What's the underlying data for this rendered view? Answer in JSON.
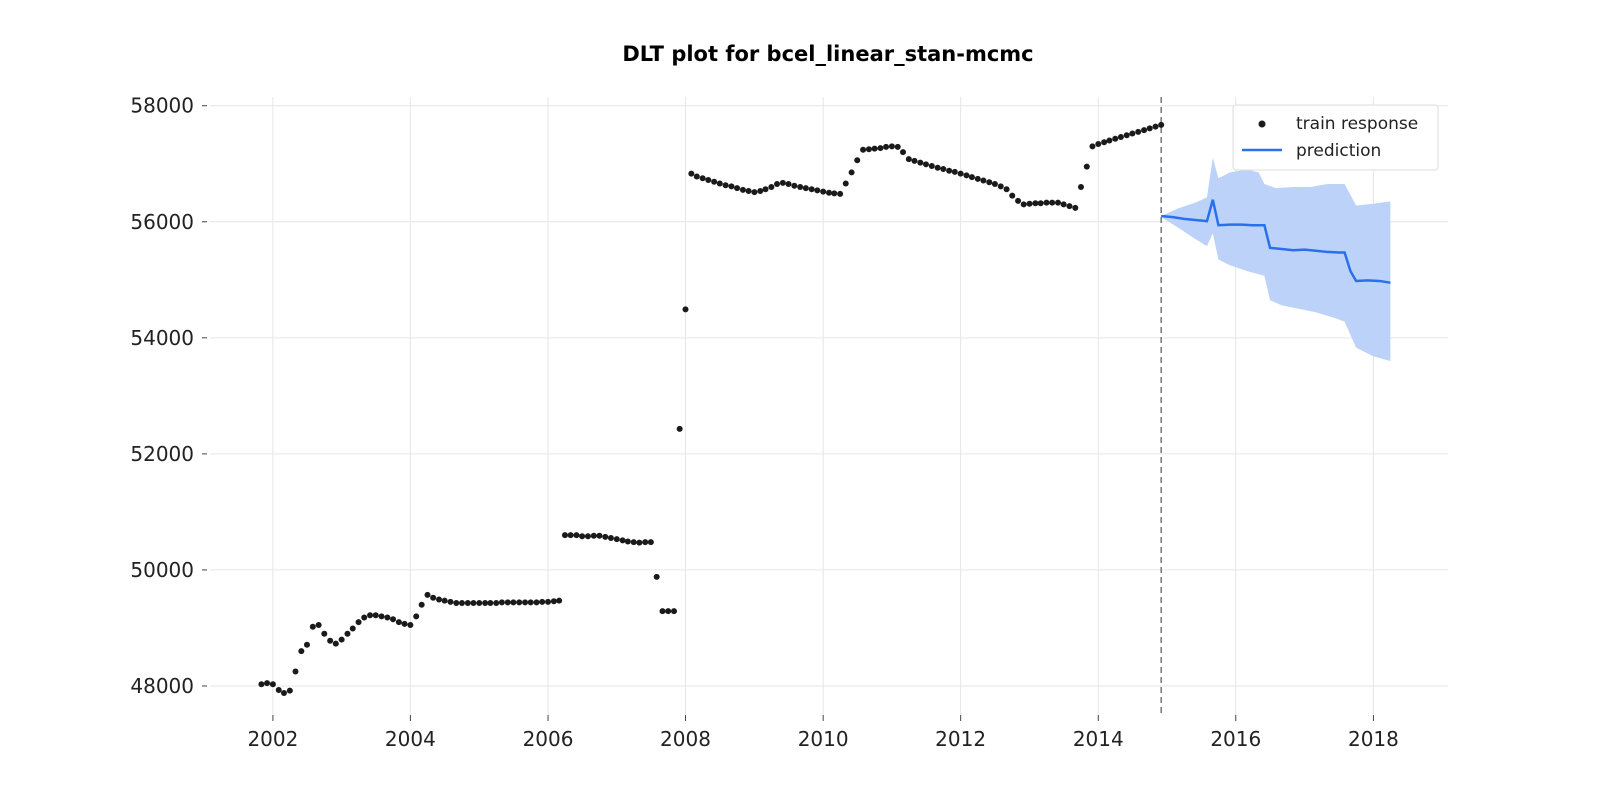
{
  "chart_data": {
    "type": "scatter",
    "title": "DLT plot for bcel_linear_stan-mcmc",
    "xlabel": "",
    "ylabel": "",
    "xlim": [
      "2001-02-01",
      "2019-02-01"
    ],
    "ylim": [
      47500,
      58150
    ],
    "x_ticks": [
      "2002",
      "2004",
      "2006",
      "2008",
      "2010",
      "2012",
      "2014",
      "2016",
      "2018"
    ],
    "y_ticks": [
      "48000",
      "50000",
      "52000",
      "54000",
      "56000",
      "58000"
    ],
    "grid": true,
    "legend_position": "top-right",
    "train_end_marker": "2014-12-01",
    "colors": {
      "train": "#1a1a1a",
      "prediction": "#2970ea",
      "band": "#bcd2f9",
      "divider": "#777777"
    },
    "series": [
      {
        "name": "train response",
        "kind": "scatter",
        "points": [
          [
            "2001-11-01",
            48030
          ],
          [
            "2001-12-01",
            48050
          ],
          [
            "2002-01-01",
            48030
          ],
          [
            "2002-02-01",
            47930
          ],
          [
            "2002-03-01",
            47880
          ],
          [
            "2002-04-01",
            47920
          ],
          [
            "2002-05-01",
            48250
          ],
          [
            "2002-06-01",
            48600
          ],
          [
            "2002-07-01",
            48710
          ],
          [
            "2002-08-01",
            49020
          ],
          [
            "2002-09-01",
            49050
          ],
          [
            "2002-10-01",
            48900
          ],
          [
            "2002-11-01",
            48780
          ],
          [
            "2002-12-01",
            48730
          ],
          [
            "2003-01-01",
            48800
          ],
          [
            "2003-02-01",
            48900
          ],
          [
            "2003-03-01",
            48990
          ],
          [
            "2003-04-01",
            49100
          ],
          [
            "2003-05-01",
            49180
          ],
          [
            "2003-06-01",
            49220
          ],
          [
            "2003-07-01",
            49220
          ],
          [
            "2003-08-01",
            49200
          ],
          [
            "2003-09-01",
            49180
          ],
          [
            "2003-10-01",
            49150
          ],
          [
            "2003-11-01",
            49100
          ],
          [
            "2003-12-01",
            49070
          ],
          [
            "2004-01-01",
            49050
          ],
          [
            "2004-02-01",
            49200
          ],
          [
            "2004-03-01",
            49400
          ],
          [
            "2004-04-01",
            49570
          ],
          [
            "2004-05-01",
            49520
          ],
          [
            "2004-06-01",
            49490
          ],
          [
            "2004-07-01",
            49470
          ],
          [
            "2004-08-01",
            49450
          ],
          [
            "2004-09-01",
            49430
          ],
          [
            "2004-10-01",
            49430
          ],
          [
            "2004-11-01",
            49430
          ],
          [
            "2004-12-01",
            49430
          ],
          [
            "2005-01-01",
            49430
          ],
          [
            "2005-02-01",
            49430
          ],
          [
            "2005-03-01",
            49430
          ],
          [
            "2005-04-01",
            49430
          ],
          [
            "2005-05-01",
            49440
          ],
          [
            "2005-06-01",
            49440
          ],
          [
            "2005-07-01",
            49440
          ],
          [
            "2005-08-01",
            49440
          ],
          [
            "2005-09-01",
            49440
          ],
          [
            "2005-10-01",
            49440
          ],
          [
            "2005-11-01",
            49440
          ],
          [
            "2005-12-01",
            49450
          ],
          [
            "2006-01-01",
            49450
          ],
          [
            "2006-02-01",
            49460
          ],
          [
            "2006-03-01",
            49470
          ],
          [
            "2006-04-01",
            50600
          ],
          [
            "2006-05-01",
            50600
          ],
          [
            "2006-06-01",
            50600
          ],
          [
            "2006-07-01",
            50580
          ],
          [
            "2006-08-01",
            50580
          ],
          [
            "2006-09-01",
            50590
          ],
          [
            "2006-10-01",
            50590
          ],
          [
            "2006-11-01",
            50570
          ],
          [
            "2006-12-01",
            50550
          ],
          [
            "2007-01-01",
            50530
          ],
          [
            "2007-02-01",
            50510
          ],
          [
            "2007-03-01",
            50490
          ],
          [
            "2007-04-01",
            50480
          ],
          [
            "2007-05-01",
            50470
          ],
          [
            "2007-06-01",
            50480
          ],
          [
            "2007-07-01",
            50480
          ],
          [
            "2007-08-01",
            49880
          ],
          [
            "2007-09-01",
            49290
          ],
          [
            "2007-10-01",
            49290
          ],
          [
            "2007-11-01",
            49290
          ],
          [
            "2007-12-01",
            52430
          ],
          [
            "2008-01-01",
            54490
          ],
          [
            "2008-02-01",
            56830
          ],
          [
            "2008-03-01",
            56780
          ],
          [
            "2008-04-01",
            56750
          ],
          [
            "2008-05-01",
            56720
          ],
          [
            "2008-06-01",
            56690
          ],
          [
            "2008-07-01",
            56660
          ],
          [
            "2008-08-01",
            56630
          ],
          [
            "2008-09-01",
            56610
          ],
          [
            "2008-10-01",
            56580
          ],
          [
            "2008-11-01",
            56550
          ],
          [
            "2008-12-01",
            56530
          ],
          [
            "2009-01-01",
            56510
          ],
          [
            "2009-02-01",
            56530
          ],
          [
            "2009-03-01",
            56560
          ],
          [
            "2009-04-01",
            56600
          ],
          [
            "2009-05-01",
            56650
          ],
          [
            "2009-06-01",
            56670
          ],
          [
            "2009-07-01",
            56650
          ],
          [
            "2009-08-01",
            56620
          ],
          [
            "2009-09-01",
            56600
          ],
          [
            "2009-10-01",
            56580
          ],
          [
            "2009-11-01",
            56560
          ],
          [
            "2009-12-01",
            56540
          ],
          [
            "2010-01-01",
            56520
          ],
          [
            "2010-02-01",
            56500
          ],
          [
            "2010-03-01",
            56490
          ],
          [
            "2010-04-01",
            56480
          ],
          [
            "2010-05-01",
            56660
          ],
          [
            "2010-06-01",
            56850
          ],
          [
            "2010-07-01",
            57060
          ],
          [
            "2010-08-01",
            57240
          ],
          [
            "2010-09-01",
            57250
          ],
          [
            "2010-10-01",
            57260
          ],
          [
            "2010-11-01",
            57270
          ],
          [
            "2010-12-01",
            57290
          ],
          [
            "2011-01-01",
            57300
          ],
          [
            "2011-02-01",
            57290
          ],
          [
            "2011-03-01",
            57200
          ],
          [
            "2011-04-01",
            57080
          ],
          [
            "2011-05-01",
            57050
          ],
          [
            "2011-06-01",
            57020
          ],
          [
            "2011-07-01",
            56990
          ],
          [
            "2011-08-01",
            56960
          ],
          [
            "2011-09-01",
            56930
          ],
          [
            "2011-10-01",
            56910
          ],
          [
            "2011-11-01",
            56880
          ],
          [
            "2011-12-01",
            56860
          ],
          [
            "2012-01-01",
            56830
          ],
          [
            "2012-02-01",
            56800
          ],
          [
            "2012-03-01",
            56770
          ],
          [
            "2012-04-01",
            56740
          ],
          [
            "2012-05-01",
            56710
          ],
          [
            "2012-06-01",
            56680
          ],
          [
            "2012-07-01",
            56650
          ],
          [
            "2012-08-01",
            56610
          ],
          [
            "2012-09-01",
            56560
          ],
          [
            "2012-10-01",
            56450
          ],
          [
            "2012-11-01",
            56360
          ],
          [
            "2012-12-01",
            56300
          ],
          [
            "2013-01-01",
            56310
          ],
          [
            "2013-02-01",
            56320
          ],
          [
            "2013-03-01",
            56320
          ],
          [
            "2013-04-01",
            56330
          ],
          [
            "2013-05-01",
            56330
          ],
          [
            "2013-06-01",
            56330
          ],
          [
            "2013-07-01",
            56300
          ],
          [
            "2013-08-01",
            56270
          ],
          [
            "2013-09-01",
            56240
          ],
          [
            "2013-10-01",
            56600
          ],
          [
            "2013-11-01",
            56950
          ],
          [
            "2013-12-01",
            57300
          ],
          [
            "2014-01-01",
            57340
          ],
          [
            "2014-02-01",
            57370
          ],
          [
            "2014-03-01",
            57400
          ],
          [
            "2014-04-01",
            57430
          ],
          [
            "2014-05-01",
            57460
          ],
          [
            "2014-06-01",
            57490
          ],
          [
            "2014-07-01",
            57520
          ],
          [
            "2014-08-01",
            57550
          ],
          [
            "2014-09-01",
            57580
          ],
          [
            "2014-10-01",
            57610
          ],
          [
            "2014-11-01",
            57640
          ],
          [
            "2014-12-01",
            57670
          ]
        ]
      },
      {
        "name": "prediction",
        "kind": "line_with_band",
        "points": [
          [
            "2014-12-01",
            56100
          ],
          [
            "2015-02-01",
            56080
          ],
          [
            "2015-04-01",
            56050
          ],
          [
            "2015-06-01",
            56030
          ],
          [
            "2015-08-01",
            56010
          ],
          [
            "2015-09-01",
            56380
          ],
          [
            "2015-10-01",
            55940
          ],
          [
            "2015-12-01",
            55950
          ],
          [
            "2016-02-01",
            55950
          ],
          [
            "2016-04-01",
            55940
          ],
          [
            "2016-06-01",
            55940
          ],
          [
            "2016-07-01",
            55550
          ],
          [
            "2016-09-01",
            55530
          ],
          [
            "2016-11-01",
            55510
          ],
          [
            "2017-01-01",
            55520
          ],
          [
            "2017-03-01",
            55500
          ],
          [
            "2017-05-01",
            55480
          ],
          [
            "2017-07-01",
            55470
          ],
          [
            "2017-08-01",
            55470
          ],
          [
            "2017-09-01",
            55150
          ],
          [
            "2017-10-01",
            54980
          ],
          [
            "2017-12-01",
            54990
          ],
          [
            "2018-02-01",
            54980
          ],
          [
            "2018-04-01",
            54950
          ]
        ],
        "band_upper": [
          [
            "2014-12-01",
            56100
          ],
          [
            "2015-03-01",
            56230
          ],
          [
            "2015-06-01",
            56330
          ],
          [
            "2015-08-01",
            56420
          ],
          [
            "2015-09-01",
            57100
          ],
          [
            "2015-10-01",
            56750
          ],
          [
            "2015-12-01",
            56850
          ],
          [
            "2016-03-01",
            56900
          ],
          [
            "2016-05-01",
            56850
          ],
          [
            "2016-06-01",
            56650
          ],
          [
            "2016-08-01",
            56580
          ],
          [
            "2016-11-01",
            56600
          ],
          [
            "2017-02-01",
            56600
          ],
          [
            "2017-05-01",
            56650
          ],
          [
            "2017-08-01",
            56650
          ],
          [
            "2017-10-01",
            56280
          ],
          [
            "2017-12-01",
            56300
          ],
          [
            "2018-04-01",
            56350
          ]
        ],
        "band_lower": [
          [
            "2014-12-01",
            56080
          ],
          [
            "2015-03-01",
            55900
          ],
          [
            "2015-06-01",
            55700
          ],
          [
            "2015-08-01",
            55580
          ],
          [
            "2015-09-01",
            55800
          ],
          [
            "2015-10-01",
            55350
          ],
          [
            "2015-12-01",
            55250
          ],
          [
            "2016-03-01",
            55150
          ],
          [
            "2016-06-01",
            55070
          ],
          [
            "2016-07-01",
            54650
          ],
          [
            "2016-09-01",
            54560
          ],
          [
            "2016-12-01",
            54500
          ],
          [
            "2017-03-01",
            54440
          ],
          [
            "2017-06-01",
            54350
          ],
          [
            "2017-08-01",
            54280
          ],
          [
            "2017-10-01",
            53830
          ],
          [
            "2018-01-01",
            53680
          ],
          [
            "2018-04-01",
            53600
          ]
        ]
      }
    ]
  }
}
